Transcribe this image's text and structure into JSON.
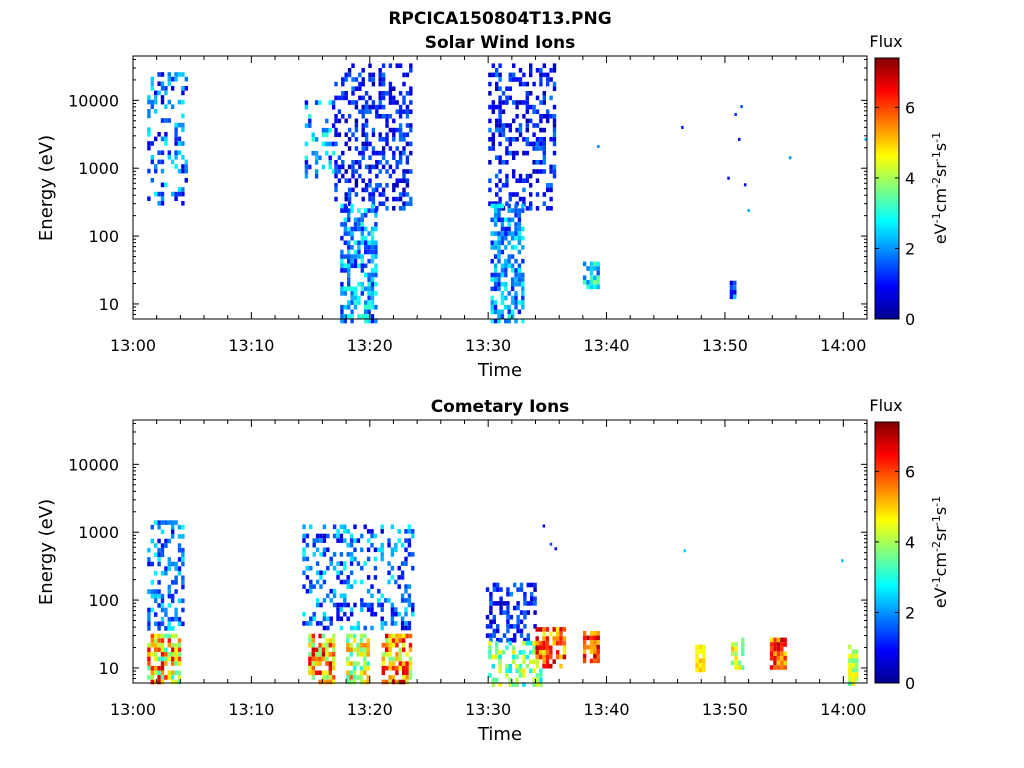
{
  "figure_title": "RPCICA150804T13.PNG",
  "chart_data": [
    {
      "type": "heatmap",
      "title": "Solar Wind Ions",
      "xlabel": "Time",
      "ylabel": "Energy (eV)",
      "x_ticks": [
        "13:00",
        "13:10",
        "13:20",
        "13:30",
        "13:40",
        "13:50",
        "14:00"
      ],
      "y_ticks": [
        "10",
        "100",
        "1000",
        "10000"
      ],
      "y_scale": "log",
      "xlim_minutes_after_1300": [
        0,
        62
      ],
      "ylim_eV": [
        6,
        45000
      ],
      "colorbar": {
        "title": "Flux",
        "label": "eV-1cm-2sr-1s-1",
        "ticks": [
          "0",
          "2",
          "4",
          "6"
        ],
        "range": [
          0,
          7.4
        ],
        "colormap": "jet"
      },
      "regions": [
        {
          "t_start": 1.2,
          "t_end": 4.5,
          "e_min": 300,
          "e_max": 26000,
          "flux": [
            0.6,
            2.8
          ],
          "density": 0.3
        },
        {
          "t_start": 14.5,
          "t_end": 17.0,
          "e_min": 800,
          "e_max": 10000,
          "flux": [
            0.8,
            3.2
          ],
          "density": 0.35
        },
        {
          "t_start": 17.0,
          "t_end": 23.5,
          "e_min": 250,
          "e_max": 35000,
          "flux": [
            0.3,
            1.8
          ],
          "density": 0.42
        },
        {
          "t_start": 17.5,
          "t_end": 20.5,
          "e_min": 6,
          "e_max": 300,
          "flux": [
            1.0,
            3.2
          ],
          "density": 0.65
        },
        {
          "t_start": 30.0,
          "t_end": 35.5,
          "e_min": 250,
          "e_max": 35000,
          "flux": [
            0.3,
            1.9
          ],
          "density": 0.4
        },
        {
          "t_start": 30.2,
          "t_end": 33.0,
          "e_min": 6,
          "e_max": 300,
          "flux": [
            1.0,
            3.0
          ],
          "density": 0.6
        },
        {
          "t_start": 38.0,
          "t_end": 39.3,
          "e_min": 17,
          "e_max": 42,
          "flux": [
            1.5,
            3.8
          ],
          "density": 0.8
        },
        {
          "t_start": 50.4,
          "t_end": 50.8,
          "e_min": 12,
          "e_max": 22,
          "flux": [
            0.8,
            2.5
          ],
          "density": 0.9
        }
      ],
      "isolated_points": [
        {
          "t": 39.2,
          "e": 2200,
          "flux": 2.0
        },
        {
          "t": 46.3,
          "e": 4200,
          "flux": 1.0
        },
        {
          "t": 50.2,
          "e": 750,
          "flux": 0.6
        },
        {
          "t": 50.8,
          "e": 6500,
          "flux": 1.2
        },
        {
          "t": 51.1,
          "e": 2800,
          "flux": 0.8
        },
        {
          "t": 51.3,
          "e": 8500,
          "flux": 1.5
        },
        {
          "t": 51.6,
          "e": 600,
          "flux": 0.7
        },
        {
          "t": 51.9,
          "e": 250,
          "flux": 2.2
        },
        {
          "t": 55.4,
          "e": 1500,
          "flux": 2.0
        },
        {
          "t": 61.8,
          "e": 2800,
          "flux": 2.2
        }
      ]
    },
    {
      "type": "heatmap",
      "title": "Cometary Ions",
      "xlabel": "Time",
      "ylabel": "Energy (eV)",
      "x_ticks": [
        "13:00",
        "13:10",
        "13:20",
        "13:30",
        "13:40",
        "13:50",
        "14:00"
      ],
      "y_ticks": [
        "10",
        "100",
        "1000",
        "10000"
      ],
      "y_scale": "log",
      "xlim_minutes_after_1300": [
        0,
        62
      ],
      "ylim_eV": [
        6,
        45000
      ],
      "colorbar": {
        "title": "Flux",
        "label": "eV-1cm-2sr-1s-1",
        "ticks": [
          "0",
          "2",
          "4",
          "6"
        ],
        "range": [
          0,
          7.4
        ],
        "colormap": "jet"
      },
      "regions": [
        {
          "t_start": 1.2,
          "t_end": 4.2,
          "e_min": 40,
          "e_max": 1500,
          "flux": [
            0.8,
            2.8
          ],
          "density": 0.35
        },
        {
          "t_start": 1.2,
          "t_end": 4.0,
          "e_min": 6,
          "e_max": 32,
          "flux": [
            3.0,
            6.8
          ],
          "density": 0.75
        },
        {
          "t_start": 14.3,
          "t_end": 23.5,
          "e_min": 40,
          "e_max": 1300,
          "flux": [
            0.5,
            2.8
          ],
          "density": 0.3
        },
        {
          "t_start": 14.8,
          "t_end": 17.0,
          "e_min": 6,
          "e_max": 32,
          "flux": [
            3.5,
            7.0
          ],
          "density": 0.7
        },
        {
          "t_start": 18.0,
          "t_end": 20.0,
          "e_min": 6,
          "e_max": 32,
          "flux": [
            3.0,
            5.8
          ],
          "density": 0.7
        },
        {
          "t_start": 21.0,
          "t_end": 23.5,
          "e_min": 6,
          "e_max": 32,
          "flux": [
            3.5,
            7.0
          ],
          "density": 0.75
        },
        {
          "t_start": 29.8,
          "t_end": 34.0,
          "e_min": 25,
          "e_max": 180,
          "flux": [
            0.4,
            2.0
          ],
          "density": 0.45
        },
        {
          "t_start": 30.0,
          "t_end": 34.5,
          "e_min": 6,
          "e_max": 25,
          "flux": [
            2.5,
            4.8
          ],
          "density": 0.55
        },
        {
          "t_start": 34.0,
          "t_end": 36.5,
          "e_min": 10,
          "e_max": 40,
          "flux": [
            4.5,
            7.0
          ],
          "density": 0.75
        },
        {
          "t_start": 38.0,
          "t_end": 39.2,
          "e_min": 12,
          "e_max": 35,
          "flux": [
            5.0,
            7.0
          ],
          "density": 0.8
        },
        {
          "t_start": 47.5,
          "t_end": 48.3,
          "e_min": 10,
          "e_max": 22,
          "flux": [
            4.5,
            5.2
          ],
          "density": 0.9
        },
        {
          "t_start": 50.5,
          "t_end": 51.4,
          "e_min": 10,
          "e_max": 28,
          "flux": [
            3.2,
            5.8
          ],
          "density": 0.85
        },
        {
          "t_start": 53.8,
          "t_end": 55.2,
          "e_min": 10,
          "e_max": 28,
          "flux": [
            4.8,
            7.0
          ],
          "density": 0.85
        },
        {
          "t_start": 60.4,
          "t_end": 61.1,
          "e_min": 6,
          "e_max": 22,
          "flux": [
            3.0,
            4.8
          ],
          "density": 0.8
        }
      ],
      "isolated_points": [
        {
          "t": 34.6,
          "e": 1300,
          "flux": 0.8
        },
        {
          "t": 35.2,
          "e": 700,
          "flux": 1.5
        },
        {
          "t": 35.6,
          "e": 600,
          "flux": 0.9
        },
        {
          "t": 46.5,
          "e": 560,
          "flux": 2.5
        },
        {
          "t": 59.8,
          "e": 400,
          "flux": 2.4
        }
      ]
    }
  ]
}
